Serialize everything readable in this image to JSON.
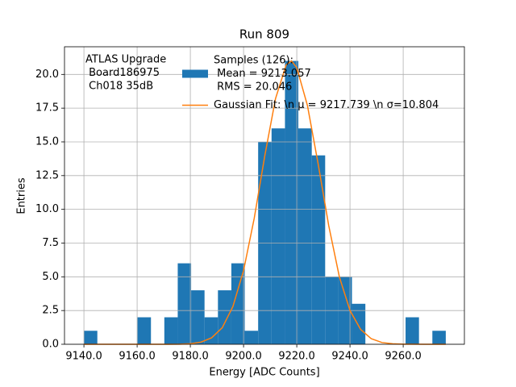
{
  "chart_data": {
    "type": "histogram",
    "title": "Run 809",
    "xlabel": "Energy [ADC Counts]",
    "ylabel": "Entries",
    "annotation": [
      "ATLAS Upgrade",
      " Board186975",
      " Ch018 35dB"
    ],
    "bins": [
      9140,
      9145.04,
      9150.07,
      9155.11,
      9160.15,
      9165.19,
      9170.22,
      9175.26,
      9180.3,
      9185.33,
      9190.37,
      9195.41,
      9200.44,
      9205.48,
      9210.52,
      9215.56,
      9220.59,
      9225.63,
      9230.67,
      9235.7,
      9240.74,
      9245.78,
      9250.81,
      9255.85,
      9260.89,
      9265.93,
      9270.96,
      9276.0
    ],
    "series": [
      {
        "name": [
          "Samples (126):",
          " Mean = 9213.057",
          " RMS = 20.046"
        ],
        "color": "#1f77b4",
        "values": [
          1,
          0,
          0,
          0,
          2,
          0,
          2,
          6,
          4,
          2,
          4,
          6,
          1,
          15,
          16,
          21,
          16,
          14,
          5,
          5,
          3,
          0,
          0,
          0,
          2,
          0,
          1
        ]
      },
      {
        "name": [
          "Gaussian Fit: \\n μ = 9217.739 \\n σ=10.804"
        ],
        "type": "line",
        "color": "#ff7f0e",
        "x": [
          9140,
          9148,
          9156,
          9164,
          9172,
          9176,
          9180,
          9184,
          9188,
          9192,
          9196,
          9200,
          9204,
          9208,
          9212,
          9216,
          9218,
          9220,
          9224,
          9228,
          9232,
          9236,
          9240,
          9244,
          9248,
          9252,
          9256,
          9260,
          9268,
          9276
        ],
        "values": [
          0,
          0,
          0,
          0,
          0,
          0.01,
          0.04,
          0.16,
          0.48,
          1.23,
          2.8,
          5.46,
          9.33,
          14.0,
          18.2,
          20.7,
          21.0,
          20.5,
          17.7,
          13.4,
          8.8,
          5.0,
          2.5,
          1.1,
          0.41,
          0.13,
          0.04,
          0.01,
          0,
          0
        ]
      }
    ],
    "xlim": [
      9132.7,
      9283
    ],
    "ylim": [
      0,
      22.05
    ],
    "xticks": [
      {
        "value": 9140,
        "label": "9140.0"
      },
      {
        "value": 9160,
        "label": "9160.0"
      },
      {
        "value": 9180,
        "label": "9180.0"
      },
      {
        "value": 9200,
        "label": "9200.0"
      },
      {
        "value": 9220,
        "label": "9220.0"
      },
      {
        "value": 9240,
        "label": "9240.0"
      },
      {
        "value": 9260,
        "label": "9260.0"
      }
    ],
    "yticks": [
      {
        "value": 0,
        "label": "0.0"
      },
      2.5,
      {
        "value": 5,
        "label": "5.0"
      },
      7.5,
      {
        "value": 10,
        "label": "10.0"
      },
      12.5,
      {
        "value": 15,
        "label": "15.0"
      },
      17.5,
      {
        "value": 20,
        "label": "20.0"
      }
    ],
    "grid": true
  }
}
